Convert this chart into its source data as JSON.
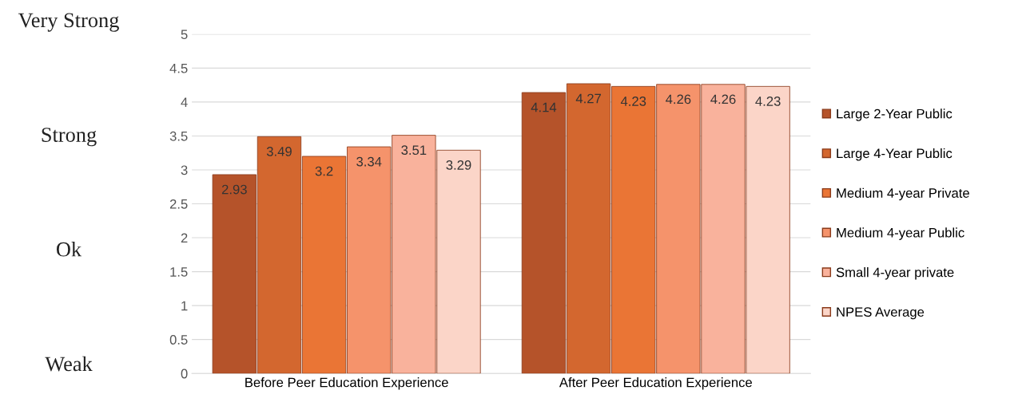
{
  "chart_data": {
    "type": "bar",
    "categories": [
      "Before Peer Education Experience",
      "After Peer Education Experience"
    ],
    "series": [
      {
        "name": "Large 2-Year Public",
        "color": "#b5532a",
        "values": [
          2.93,
          4.14
        ]
      },
      {
        "name": "Large 4-Year Public",
        "color": "#d3672f",
        "values": [
          3.49,
          4.27
        ]
      },
      {
        "name": "Medium 4-year Private",
        "color": "#ea7535",
        "values": [
          3.2,
          4.23
        ]
      },
      {
        "name": "Medium 4-year Public",
        "color": "#f5936b",
        "values": [
          3.34,
          4.26
        ]
      },
      {
        "name": "Small 4-year private",
        "color": "#f9b29c",
        "values": [
          3.51,
          4.26
        ]
      },
      {
        "name": "NPES Average",
        "color": "#fbd5c8",
        "values": [
          3.29,
          4.23
        ]
      }
    ],
    "ylim": [
      0,
      5
    ],
    "yticks": [
      0,
      0.5,
      1,
      1.5,
      2,
      2.5,
      3,
      3.5,
      4,
      4.5,
      5
    ],
    "grid": "y",
    "legend": "right",
    "data_labels": true,
    "annotations": [
      "Very Strong",
      "Strong",
      "Ok",
      "Weak"
    ]
  }
}
